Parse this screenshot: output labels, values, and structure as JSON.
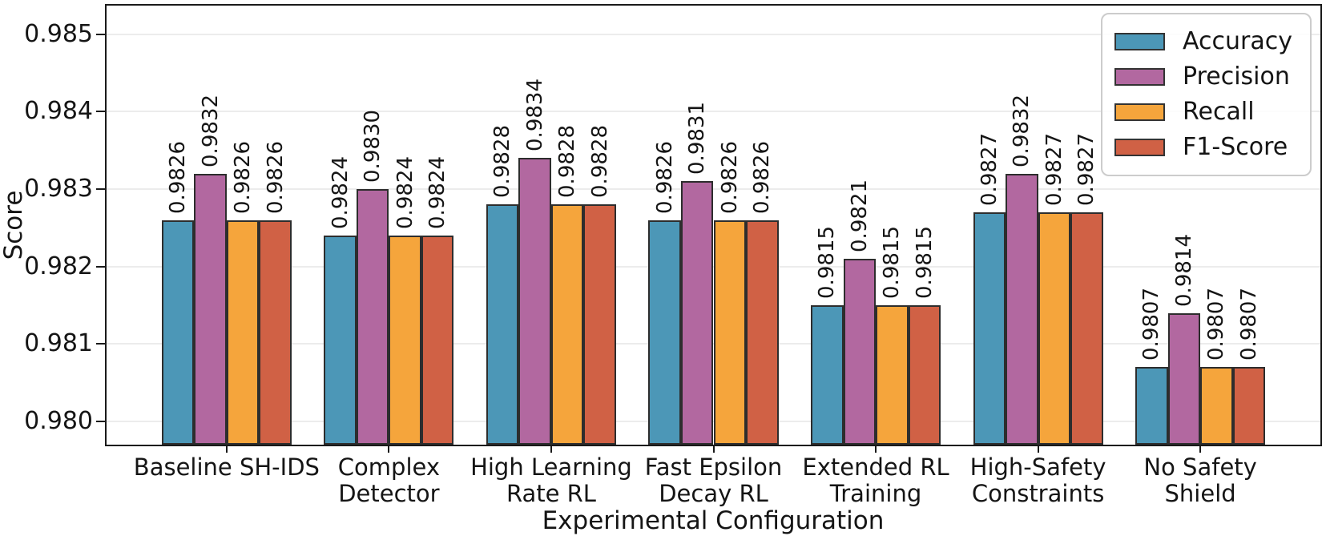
{
  "chart_data": {
    "type": "bar",
    "title": "",
    "xlabel": "Experimental Configuration",
    "ylabel": "Score",
    "categories": [
      "Baseline SH-IDS",
      "Complex\nDetector",
      "High Learning\nRate RL",
      "Fast Epsilon\nDecay RL",
      "Extended RL\nTraining",
      "High-Safety\nConstraints",
      "No Safety\nShield"
    ],
    "series": [
      {
        "name": "Accuracy",
        "color": "#4C97B7",
        "values": [
          0.9826,
          0.9824,
          0.9828,
          0.9826,
          0.9815,
          0.9827,
          0.9807
        ]
      },
      {
        "name": "Precision",
        "color": "#B268A0",
        "values": [
          0.9832,
          0.983,
          0.9834,
          0.9831,
          0.9821,
          0.9832,
          0.9814
        ]
      },
      {
        "name": "Recall",
        "color": "#F5A53C",
        "values": [
          0.9826,
          0.9824,
          0.9828,
          0.9826,
          0.9815,
          0.9827,
          0.9807
        ]
      },
      {
        "name": "F1-Score",
        "color": "#D06145",
        "values": [
          0.9826,
          0.9824,
          0.9828,
          0.9826,
          0.9815,
          0.9827,
          0.9807
        ]
      }
    ],
    "ylim": [
      0.9797,
      0.98537
    ],
    "yticks": [
      0.98,
      0.981,
      0.982,
      0.983,
      0.984,
      0.985
    ],
    "ytick_labels": [
      "0.980",
      "0.981",
      "0.982",
      "0.983",
      "0.984",
      "0.985"
    ],
    "bar_value_decimals": 4,
    "grid": true,
    "legend_position": "upper right",
    "style": {
      "grid_color": "#ececec",
      "spine_color": "#1a1a1a",
      "bar_edge_color": "#2d2d2d",
      "background": "#ffffff"
    }
  }
}
